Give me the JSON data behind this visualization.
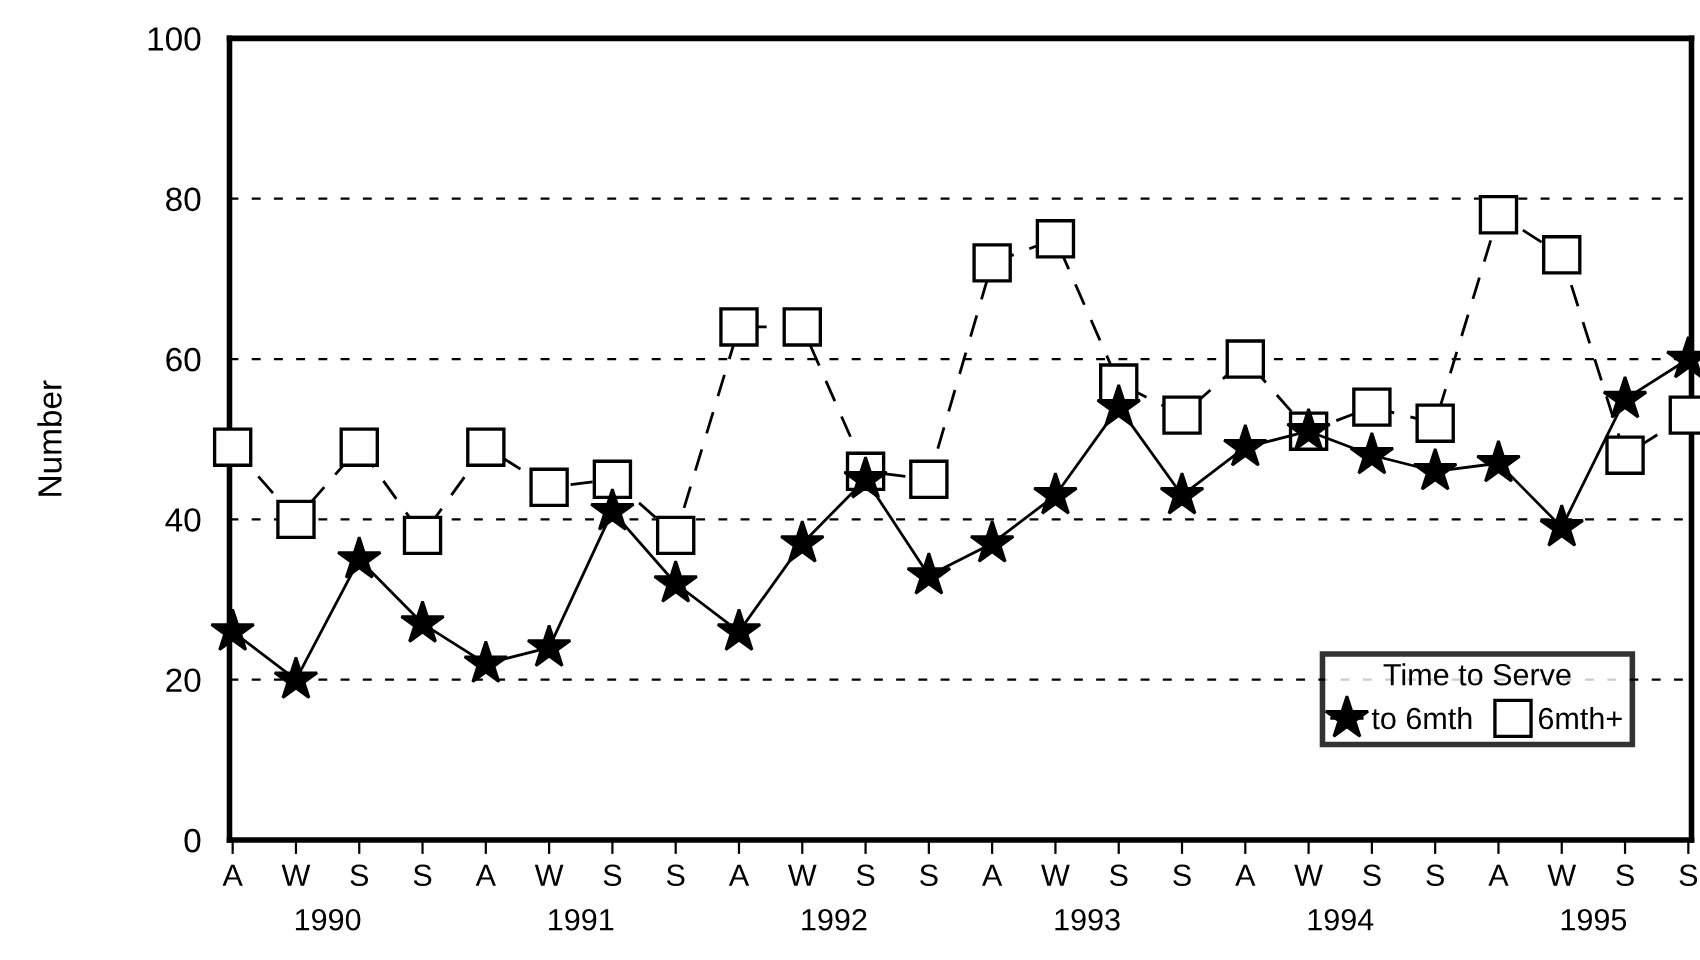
{
  "chart_data": {
    "type": "line",
    "ylabel": "Number",
    "categories": [
      "A",
      "W",
      "S",
      "S",
      "A",
      "W",
      "S",
      "S",
      "A",
      "W",
      "S",
      "S",
      "A",
      "W",
      "S",
      "S",
      "A",
      "W",
      "S",
      "S",
      "A",
      "W",
      "S",
      "S"
    ],
    "annotations": [
      "1990",
      "1991",
      "1992",
      "1993",
      "1994",
      "1995"
    ],
    "ylim": [
      0,
      100
    ],
    "yticks": [
      0,
      20,
      40,
      60,
      80,
      100
    ],
    "grid": "y",
    "legend": "bottom right",
    "legend_title": "Time to Serve",
    "series": [
      {
        "name": "to 6mth",
        "color": "#000000",
        "marker": "star",
        "line_style": "solid",
        "values": [
          26,
          20,
          35,
          27,
          22,
          24,
          41,
          32,
          26,
          37,
          45,
          33,
          37,
          43,
          54,
          43,
          49,
          51,
          48,
          46,
          47,
          39,
          55,
          60
        ]
      },
      {
        "name": "6mth+",
        "color": "#000000",
        "marker": "square",
        "line_style": "dashed",
        "values": [
          49,
          40,
          49,
          38,
          49,
          44,
          45,
          38,
          64,
          64,
          46,
          45,
          72,
          75,
          57,
          53,
          60,
          51,
          54,
          52,
          78,
          73,
          48,
          53
        ]
      }
    ]
  }
}
